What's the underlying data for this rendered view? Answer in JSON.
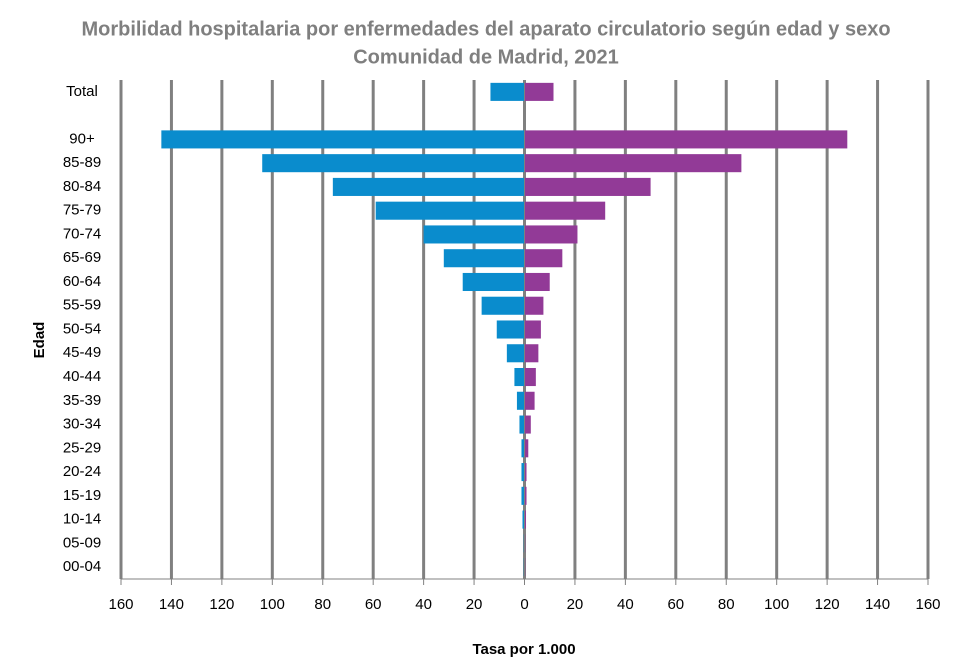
{
  "chart_data": {
    "type": "pyramid",
    "title": "Morbilidad hospitalaria por enfermedades del aparato circulatorio según edad y sexo",
    "subtitle": "Comunidad de Madrid, 2021",
    "x_label": "Tasa por 1.000",
    "y_label": "Edad",
    "categories": [
      "Total",
      null,
      "90+",
      "85-89",
      "80-84",
      "75-79",
      "70-74",
      "65-69",
      "60-64",
      "55-59",
      "50-54",
      "45-49",
      "40-44",
      "35-39",
      "30-34",
      "25-29",
      "20-24",
      "15-19",
      "10-14",
      "05-09",
      "00-04"
    ],
    "series": [
      {
        "color": "#0a8ccd",
        "values": [
          -13.5,
          null,
          -144,
          -104,
          -76,
          -59,
          -40,
          -32,
          -24.5,
          -17,
          -11,
          -7,
          -4,
          -3,
          -2,
          -1.2,
          -1.2,
          -1.2,
          -0.8,
          -0.3,
          -0.3
        ]
      },
      {
        "color": "#923a97",
        "values": [
          11.5,
          null,
          128,
          86,
          50,
          32,
          21,
          15,
          10,
          7.5,
          6.5,
          5.5,
          4.5,
          4,
          2.5,
          1.5,
          0.8,
          0.8,
          0.6,
          0.3,
          0.3
        ]
      }
    ],
    "xlim": [
      -160,
      160
    ],
    "xticks": [
      {
        "value": -160,
        "label": "160"
      },
      {
        "value": -140,
        "label": "140"
      },
      {
        "value": -120,
        "label": "120"
      },
      {
        "value": -100,
        "label": "100"
      },
      {
        "value": -80,
        "label": "80"
      },
      {
        "value": -60,
        "label": "60"
      },
      {
        "value": -40,
        "label": "40"
      },
      {
        "value": -20,
        "label": "20"
      },
      0,
      20,
      40,
      60,
      80,
      100,
      120,
      140,
      160
    ],
    "grid": true
  }
}
